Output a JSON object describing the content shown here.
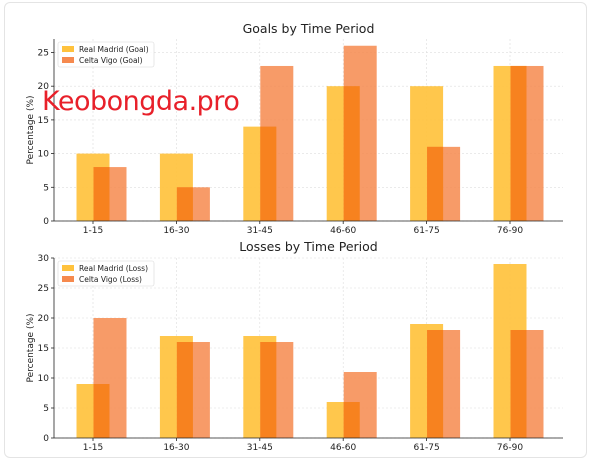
{
  "watermark": "Keobongda.pro",
  "colors": {
    "series_a": "#ffc23d",
    "series_b": "#f68a4e",
    "overlap": "#f7821f",
    "axis": "#222222",
    "grid": "#dddddd"
  },
  "chart_data": [
    {
      "type": "bar",
      "title": "Goals by Time Period",
      "xlabel": "",
      "ylabel": "Percentage (%)",
      "categories": [
        "1-15",
        "16-30",
        "31-45",
        "46-60",
        "61-75",
        "76-90"
      ],
      "ylim": [
        0,
        27
      ],
      "yticks": [
        0,
        5,
        10,
        15,
        20,
        25
      ],
      "grid": true,
      "legend": "top-left",
      "series": [
        {
          "name": "Real Madrid (Goal)",
          "values": [
            10,
            10,
            14,
            20,
            20,
            23
          ]
        },
        {
          "name": "Celta Vigo (Goal)",
          "values": [
            8,
            5,
            23,
            26,
            11,
            23
          ]
        }
      ]
    },
    {
      "type": "bar",
      "title": "Losses by Time Period",
      "xlabel": "",
      "ylabel": "Percentage (%)",
      "categories": [
        "1-15",
        "16-30",
        "31-45",
        "46-60",
        "61-75",
        "76-90"
      ],
      "ylim": [
        0,
        30
      ],
      "yticks": [
        0,
        5,
        10,
        15,
        20,
        25,
        30
      ],
      "grid": true,
      "legend": "top-left",
      "series": [
        {
          "name": "Real Madrid (Loss)",
          "values": [
            9,
            17,
            17,
            6,
            19,
            29
          ]
        },
        {
          "name": "Celta Vigo (Loss)",
          "values": [
            20,
            16,
            16,
            11,
            18,
            18
          ]
        }
      ]
    }
  ]
}
